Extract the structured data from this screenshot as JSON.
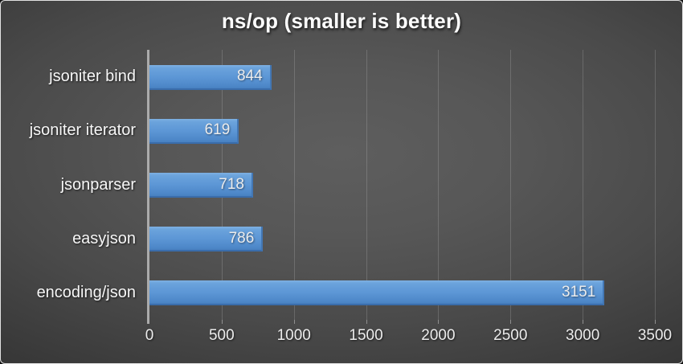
{
  "chart_data": {
    "type": "bar",
    "orientation": "horizontal",
    "title": "ns/op (smaller is better)",
    "categories": [
      "jsoniter bind",
      "jsoniter iterator",
      "jsonparser",
      "easyjson",
      "encoding/json"
    ],
    "values": [
      844,
      619,
      718,
      786,
      3151
    ],
    "xlabel": "",
    "ylabel": "",
    "xlim": [
      0,
      3500
    ],
    "xticks": [
      0,
      500,
      1000,
      1500,
      2000,
      2500,
      3000,
      3500
    ],
    "grid": "vertical-gridlines-every-500",
    "legend_position": "none",
    "value_label_position": "inside-end"
  },
  "colors": {
    "bar_fill_top": "#7FB1E3",
    "bar_fill_bottom": "#4880C0",
    "bar_edge": "#3A6DAB",
    "background_center": "#5E5E5E",
    "background_corner": "#242424",
    "axis_line": "#ABABAB",
    "gridline": "#6E6E6E",
    "text": "#ECECEC",
    "title_text": "#FDFDFD"
  }
}
